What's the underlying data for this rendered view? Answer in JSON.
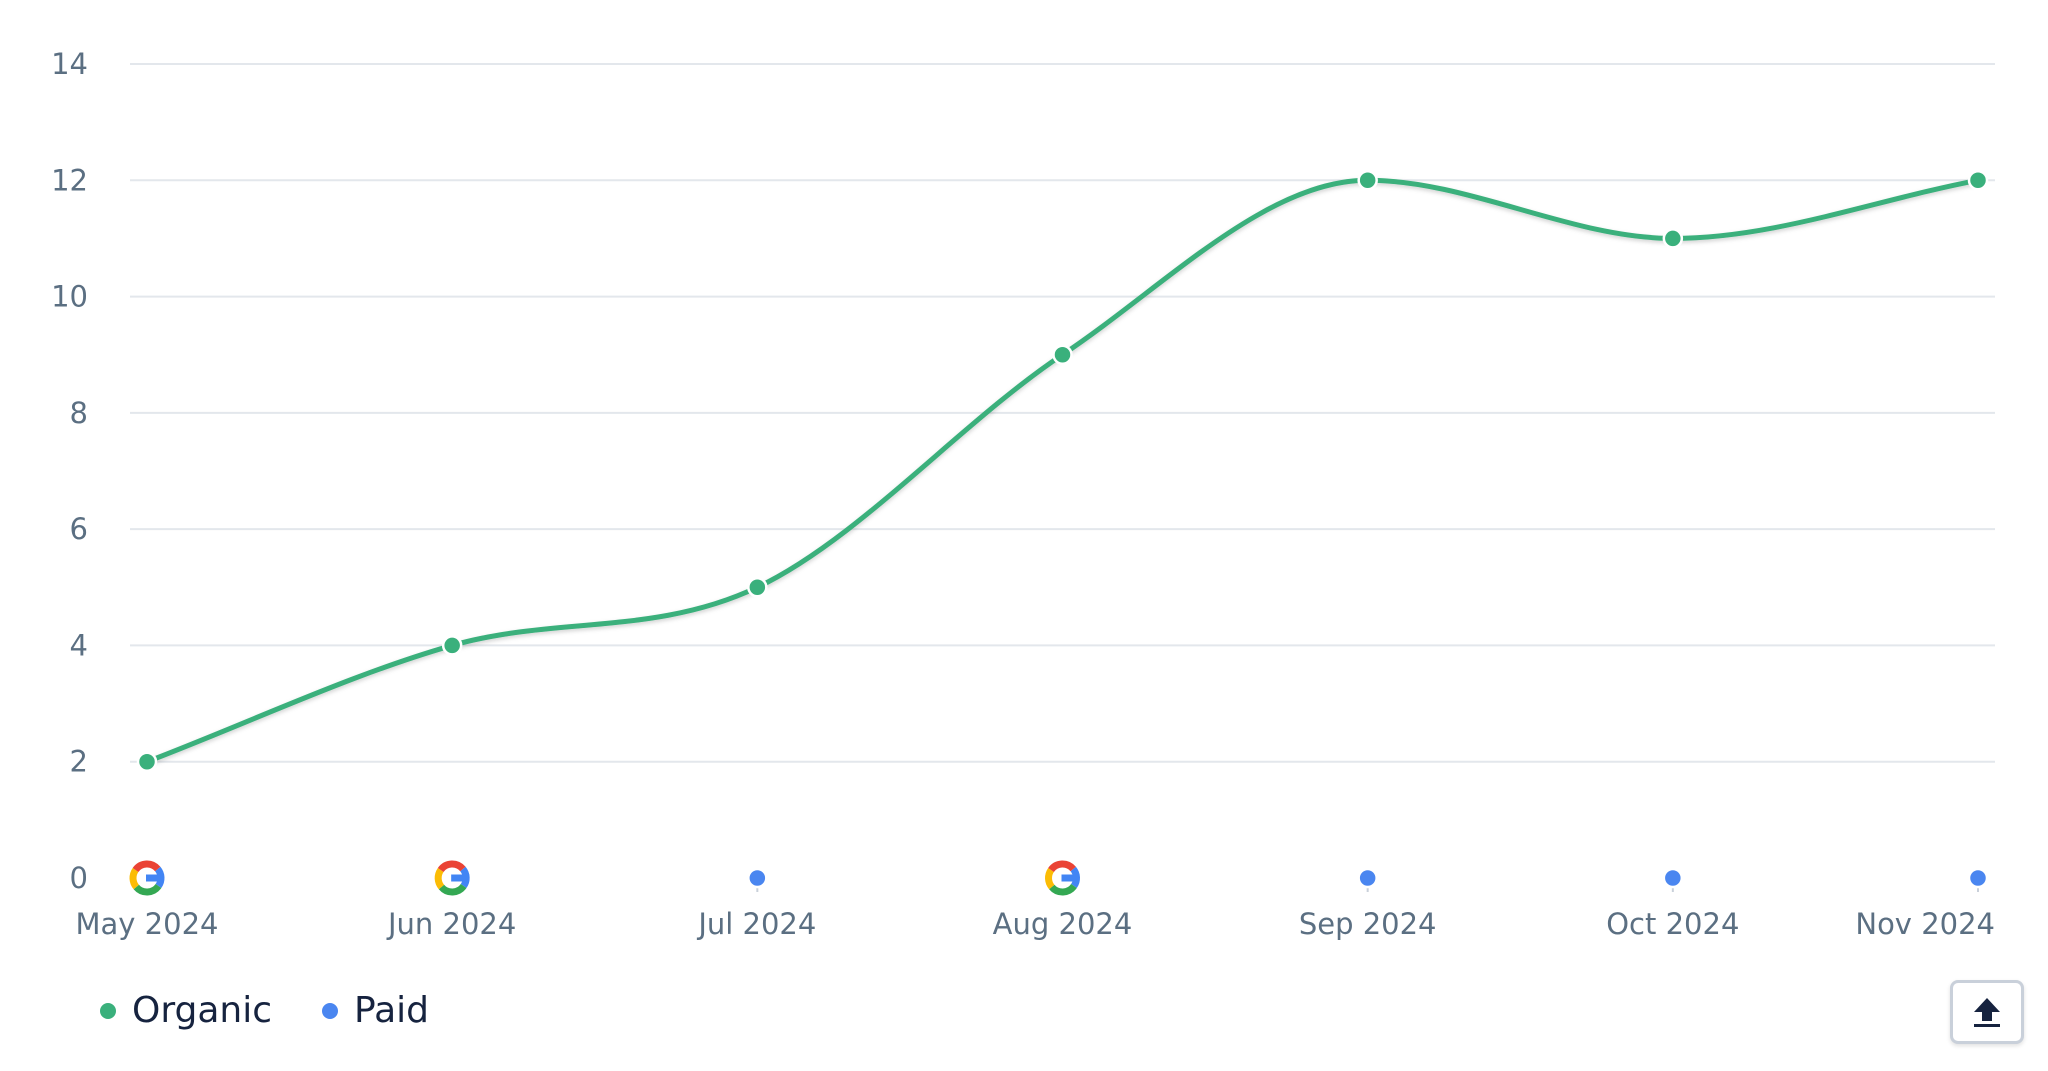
{
  "chart_data": {
    "type": "line",
    "categories": [
      "May 2024",
      "Jun 2024",
      "Jul 2024",
      "Aug 2024",
      "Sep 2024",
      "Oct 2024",
      "Nov 2024"
    ],
    "series": [
      {
        "name": "Organic",
        "color": "#3ab07c",
        "values": [
          2,
          4,
          5,
          9,
          12,
          11,
          12
        ]
      },
      {
        "name": "Paid",
        "color": "#4a86f0",
        "values": [
          0,
          0,
          0,
          0,
          0,
          0,
          0
        ]
      }
    ],
    "yticks": [
      0,
      2,
      4,
      6,
      8,
      10,
      12,
      14
    ],
    "ylim": [
      0,
      14
    ],
    "grid": true,
    "legend_position": "bottom-left",
    "event_markers": [
      {
        "category": "May 2024",
        "icon": "google-icon"
      },
      {
        "category": "Jun 2024",
        "icon": "google-icon"
      },
      {
        "category": "Aug 2024",
        "icon": "google-icon"
      }
    ]
  },
  "colors": {
    "grid": "#e3e7ec",
    "tick_text": "#5b6f82",
    "legend_text": "#16233f"
  },
  "export": {
    "icon": "upload-icon"
  }
}
